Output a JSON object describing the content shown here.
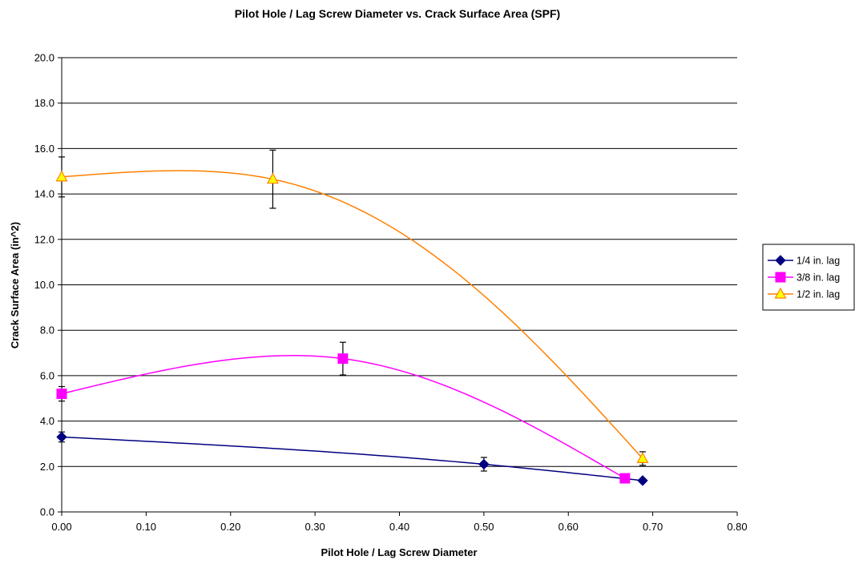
{
  "chart_data": {
    "type": "line",
    "title": "Pilot Hole / Lag Screw Diameter vs. Crack Surface Area (SPF)",
    "xlabel": "Pilot Hole / Lag Screw Diameter",
    "ylabel": "Crack Surface Area (in^2)",
    "xlim": [
      0,
      0.8
    ],
    "ylim": [
      0,
      20
    ],
    "x_ticks": [
      "0.00",
      "0.10",
      "0.20",
      "0.30",
      "0.40",
      "0.50",
      "0.60",
      "0.70",
      "0.80"
    ],
    "y_ticks": [
      "0.0",
      "2.0",
      "4.0",
      "6.0",
      "8.0",
      "10.0",
      "12.0",
      "14.0",
      "16.0",
      "18.0",
      "20.0"
    ],
    "grid": "horizontal major gridlines",
    "legend_position": "right",
    "series": [
      {
        "name": "1/4 in. lag",
        "color": "#000080",
        "marker": "diamond",
        "points": [
          {
            "x": 0.0,
            "y": 3.3,
            "err": 0.22
          },
          {
            "x": 0.5,
            "y": 2.1,
            "err": 0.3
          },
          {
            "x": 0.688,
            "y": 1.38,
            "err": 0.08
          }
        ]
      },
      {
        "name": "3/8 in. lag",
        "color": "#ff00ff",
        "marker": "square",
        "points": [
          {
            "x": 0.0,
            "y": 5.2,
            "err": 0.32
          },
          {
            "x": 0.333,
            "y": 6.75,
            "err": 0.72
          },
          {
            "x": 0.667,
            "y": 1.48,
            "err": 0.05
          }
        ]
      },
      {
        "name": "1/2 in. lag",
        "color": "#ff8000",
        "marker_fill": "#ffff00",
        "marker": "triangle",
        "points": [
          {
            "x": 0.0,
            "y": 14.75,
            "err": 0.88
          },
          {
            "x": 0.25,
            "y": 14.65,
            "err": 1.28
          },
          {
            "x": 0.688,
            "y": 2.35,
            "err": 0.3
          }
        ]
      }
    ]
  }
}
